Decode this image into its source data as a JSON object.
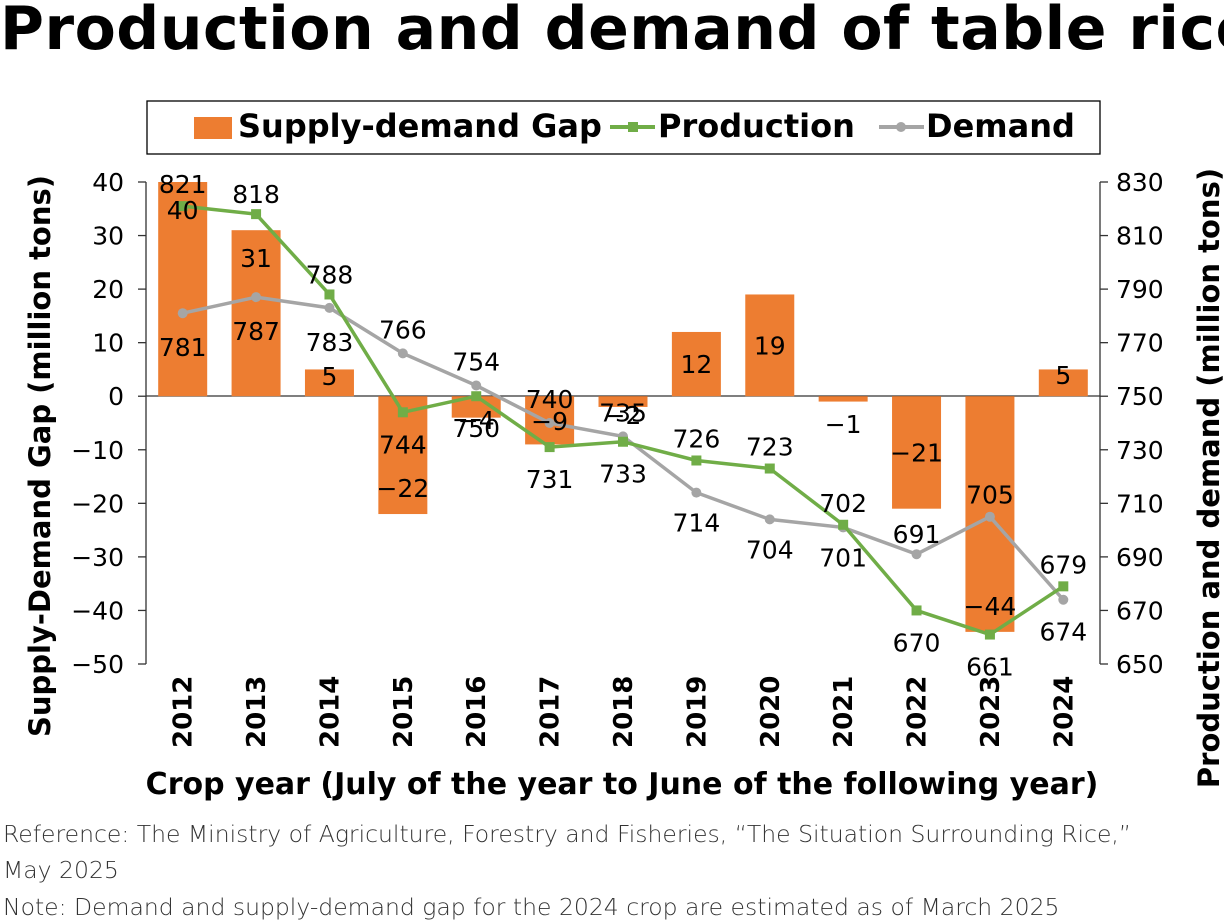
{
  "title": "Production and demand of table rice",
  "legend": {
    "gap": "Supply-demand Gap",
    "production": "Production",
    "demand": "Demand"
  },
  "colors": {
    "gap": "#ED7D31",
    "production": "#70AD47",
    "demand": "#A5A5A5"
  },
  "footnotes": {
    "reference_line1": "Reference: The Ministry of Agriculture, Forestry and Fisheries, “The Situation Surrounding Rice,”",
    "reference_line2": "May 2025",
    "note": "Note: Demand and supply-demand gap for the 2024 crop are estimated as of March 2025"
  },
  "chart_data": {
    "type": "bar",
    "title": "Production and demand of table rice",
    "xlabel": "Crop year (July of the year to June of the following year)",
    "ylabel": "Supply-Demand Gap (million tons)",
    "y2label": "Production and demand (million tons)",
    "categories": [
      "2012",
      "2013",
      "2014",
      "2015",
      "2016",
      "2017",
      "2018",
      "2019",
      "2020",
      "2021",
      "2022",
      "2023",
      "2024"
    ],
    "ylim": [
      -50,
      40
    ],
    "y_ticks": [
      40,
      30,
      20,
      10,
      0,
      -10,
      -20,
      -30,
      -40,
      -50
    ],
    "y_tick_labels": [
      "40",
      "30",
      "20",
      "10",
      "0",
      "−10",
      "−20",
      "−30",
      "−40",
      "−50"
    ],
    "y2lim": [
      650,
      830
    ],
    "y2_ticks": [
      830,
      810,
      790,
      770,
      750,
      730,
      710,
      690,
      670,
      650
    ],
    "legend_position": "top",
    "grid": false,
    "series": [
      {
        "name": "Supply-demand Gap",
        "type": "bar",
        "axis": "left",
        "values": [
          40,
          31,
          5,
          -22,
          -4,
          -9,
          -2,
          12,
          19,
          -1,
          -21,
          -44,
          5
        ],
        "labels": [
          "40",
          "31",
          "5",
          "−22",
          "−4",
          "−9",
          "−2",
          "12",
          "19",
          "−1",
          "−21",
          "−44",
          "5"
        ]
      },
      {
        "name": "Production",
        "type": "line",
        "axis": "right",
        "values": [
          821,
          818,
          788,
          744,
          750,
          731,
          733,
          726,
          723,
          702,
          670,
          661,
          679
        ]
      },
      {
        "name": "Demand",
        "type": "line",
        "axis": "right",
        "values": [
          781,
          787,
          783,
          766,
          754,
          740,
          735,
          714,
          704,
          701,
          691,
          705,
          674
        ]
      }
    ]
  }
}
